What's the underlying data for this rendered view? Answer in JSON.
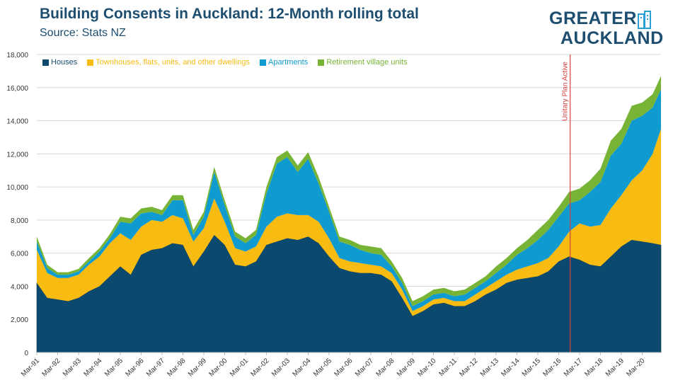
{
  "header": {
    "title": "Building Consents in Auckland: 12-Month rolling total",
    "source": "Source: Stats NZ"
  },
  "logo": {
    "line1": "GREATER",
    "line2": "AUCKLAND"
  },
  "colors": {
    "houses": "#0b4a6e",
    "townhouses": "#f7bb12",
    "apartments": "#0f9ad0",
    "retirement": "#77b436",
    "annotation": "#d94040",
    "text": "#1d4e6f",
    "grid": "#d9d9d9"
  },
  "chart_data": {
    "type": "area",
    "stacked": true,
    "title": "Building Consents in Auckland: 12-Month rolling total",
    "ylim": [
      0,
      18000
    ],
    "yticks": [
      0,
      2000,
      4000,
      6000,
      8000,
      10000,
      12000,
      14000,
      16000,
      18000
    ],
    "ytick_labels": [
      "0",
      "2,000",
      "4,000",
      "6,000",
      "8,000",
      "10,000",
      "12,000",
      "14,000",
      "16,000",
      "18,000"
    ],
    "x_start_year": 1991,
    "x_end_year": 2020.9,
    "xtick_labels": [
      "Mar-91",
      "Mar-92",
      "Mar-93",
      "Mar-94",
      "Mar-95",
      "Mar-96",
      "Mar-97",
      "Mar-98",
      "Mar-99",
      "Mar-00",
      "Mar-01",
      "Mar-02",
      "Mar-03",
      "Mar-04",
      "Mar-05",
      "Mar-06",
      "Mar-07",
      "Mar-08",
      "Mar-09",
      "Mar-10",
      "Mar-11",
      "Mar-12",
      "Mar-13",
      "Mar-14",
      "Mar-15",
      "Mar-16",
      "Mar-17",
      "Mar-18",
      "Mar-19",
      "Mar-20"
    ],
    "legend_position": "top-left",
    "annotation": {
      "label": "Unitary Plan Active",
      "x": 2016.55
    },
    "x": [
      1991.0,
      1991.5,
      1992.0,
      1992.5,
      1993.0,
      1993.5,
      1994.0,
      1994.5,
      1995.0,
      1995.5,
      1996.0,
      1996.5,
      1997.0,
      1997.5,
      1998.0,
      1998.5,
      1999.0,
      1999.5,
      2000.0,
      2000.5,
      2001.0,
      2001.5,
      2002.0,
      2002.5,
      2003.0,
      2003.5,
      2004.0,
      2004.5,
      2005.0,
      2005.5,
      2006.0,
      2006.5,
      2007.0,
      2007.5,
      2008.0,
      2008.5,
      2009.0,
      2009.5,
      2010.0,
      2010.5,
      2011.0,
      2011.5,
      2012.0,
      2012.5,
      2013.0,
      2013.5,
      2014.0,
      2014.5,
      2015.0,
      2015.5,
      2016.0,
      2016.5,
      2017.0,
      2017.5,
      2018.0,
      2018.5,
      2019.0,
      2019.5,
      2020.0,
      2020.5,
      2020.9
    ],
    "series": [
      {
        "name": "Houses",
        "values": [
          4200,
          3300,
          3200,
          3100,
          3300,
          3700,
          4000,
          4600,
          5200,
          4700,
          5900,
          6200,
          6300,
          6600,
          6500,
          5200,
          6100,
          7100,
          6500,
          5300,
          5200,
          5500,
          6500,
          6700,
          6900,
          6800,
          7000,
          6600,
          5800,
          5100,
          4900,
          4800,
          4800,
          4700,
          4300,
          3300,
          2200,
          2500,
          2900,
          3000,
          2800,
          2800,
          3100,
          3500,
          3800,
          4200,
          4400,
          4500,
          4600,
          4900,
          5500,
          5800,
          5600,
          5300,
          5200,
          5800,
          6400,
          6800,
          6700,
          6600,
          6500
        ]
      },
      {
        "name": "Townhouses, flats, units, and other dwellings",
        "values": [
          2000,
          1500,
          1300,
          1400,
          1400,
          1600,
          1800,
          2000,
          2000,
          2100,
          1700,
          1800,
          1600,
          1700,
          1600,
          1500,
          1400,
          2200,
          1400,
          1000,
          900,
          900,
          1100,
          1500,
          1500,
          1500,
          1300,
          1300,
          1100,
          600,
          600,
          600,
          500,
          500,
          500,
          500,
          300,
          300,
          300,
          300,
          300,
          300,
          400,
          400,
          500,
          500,
          600,
          700,
          800,
          800,
          900,
          1500,
          2200,
          2300,
          2500,
          2900,
          3100,
          3600,
          4300,
          5400,
          7000
        ]
      },
      {
        "name": "Apartments",
        "values": [
          500,
          300,
          200,
          200,
          200,
          200,
          300,
          300,
          700,
          1000,
          800,
          500,
          400,
          900,
          1100,
          400,
          700,
          1600,
          1000,
          700,
          500,
          700,
          2000,
          3200,
          3400,
          2600,
          3400,
          2300,
          1600,
          1000,
          1000,
          800,
          700,
          700,
          400,
          400,
          300,
          300,
          300,
          300,
          300,
          400,
          400,
          400,
          500,
          600,
          900,
          1100,
          1400,
          1700,
          1800,
          1700,
          1400,
          2100,
          2600,
          3200,
          3100,
          3600,
          3300,
          2800,
          2400
        ]
      },
      {
        "name": "Retirement village units",
        "values": [
          300,
          200,
          150,
          150,
          150,
          200,
          200,
          250,
          300,
          300,
          300,
          300,
          300,
          300,
          300,
          300,
          300,
          300,
          300,
          300,
          300,
          300,
          400,
          400,
          400,
          400,
          400,
          400,
          300,
          300,
          300,
          300,
          400,
          400,
          300,
          300,
          300,
          300,
          300,
          300,
          300,
          300,
          300,
          300,
          400,
          400,
          400,
          500,
          600,
          600,
          600,
          700,
          700,
          700,
          800,
          900,
          900,
          900,
          800,
          800,
          800
        ]
      }
    ]
  }
}
